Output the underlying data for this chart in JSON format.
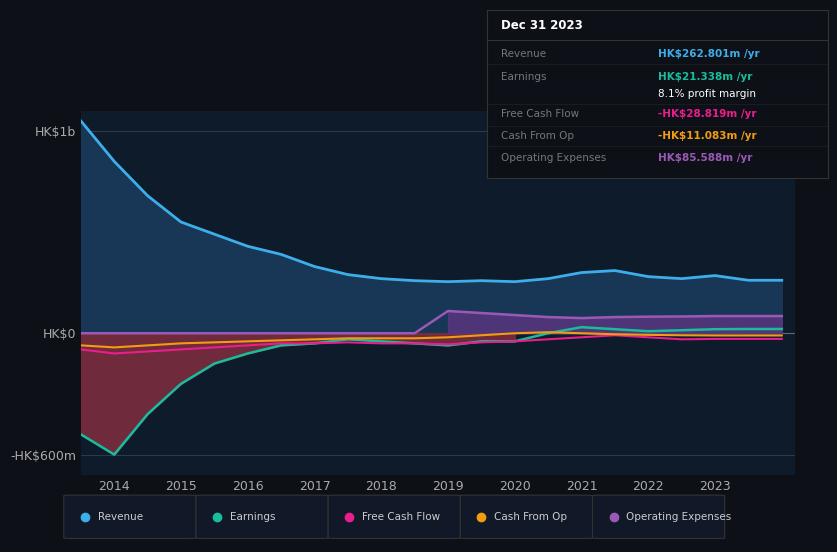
{
  "background_color": "#0d1117",
  "chart_bg": "#0d1b2a",
  "years": [
    2013.5,
    2014,
    2014.5,
    2015,
    2015.5,
    2016,
    2016.5,
    2017,
    2017.5,
    2018,
    2018.5,
    2019,
    2019.5,
    2020,
    2020.5,
    2021,
    2021.5,
    2022,
    2022.5,
    2023,
    2023.5,
    2024.0
  ],
  "revenue": [
    1050,
    850,
    680,
    550,
    490,
    430,
    390,
    330,
    290,
    270,
    260,
    255,
    260,
    255,
    270,
    300,
    310,
    280,
    270,
    285,
    262,
    262
  ],
  "earnings": [
    -500,
    -600,
    -400,
    -250,
    -150,
    -100,
    -60,
    -50,
    -30,
    -40,
    -50,
    -60,
    -40,
    -40,
    0,
    30,
    20,
    10,
    15,
    20,
    21,
    21
  ],
  "free_cash_flow": [
    -80,
    -100,
    -90,
    -80,
    -70,
    -60,
    -50,
    -50,
    -45,
    -50,
    -50,
    -55,
    -45,
    -40,
    -30,
    -20,
    -10,
    -20,
    -30,
    -28,
    -28,
    -28
  ],
  "cash_from_op": [
    -60,
    -70,
    -60,
    -50,
    -45,
    -40,
    -35,
    -30,
    -25,
    -25,
    -25,
    -20,
    -10,
    0,
    5,
    0,
    -5,
    -8,
    -10,
    -11,
    -11,
    -11
  ],
  "operating_expenses": [
    0,
    0,
    0,
    0,
    0,
    0,
    0,
    0,
    0,
    0,
    0,
    110,
    100,
    90,
    80,
    75,
    80,
    82,
    83,
    85,
    85,
    85
  ],
  "ylim": [
    -700,
    1100
  ],
  "yticks_labels": [
    "HK$1b",
    "HK$0",
    "-HK$600m"
  ],
  "yticks_values": [
    1000,
    0,
    -600
  ],
  "revenue_color": "#3daee9",
  "earnings_color": "#1abc9c",
  "fcf_color": "#e91e8c",
  "cashop_color": "#f39c12",
  "opex_color": "#9b59b6",
  "earnings_fill_color": "#7b2d3e",
  "opex_fill_color": "#5c3580",
  "revenue_fill_color": "#1a3a5c",
  "info_box": {
    "date": "Dec 31 2023",
    "revenue_label": "Revenue",
    "revenue_value": "HK$262.801m /yr",
    "revenue_color": "#3daee9",
    "earnings_label": "Earnings",
    "earnings_value": "HK$21.338m /yr",
    "earnings_color": "#1abc9c",
    "margin_text": "8.1% profit margin",
    "fcf_label": "Free Cash Flow",
    "fcf_value": "-HK$28.819m /yr",
    "fcf_color": "#e91e8c",
    "cashop_label": "Cash From Op",
    "cashop_value": "-HK$11.083m /yr",
    "cashop_color": "#f39c12",
    "opex_label": "Operating Expenses",
    "opex_value": "HK$85.588m /yr",
    "opex_color": "#9b59b6"
  },
  "legend_items": [
    {
      "label": "Revenue",
      "color": "#3daee9"
    },
    {
      "label": "Earnings",
      "color": "#1abc9c"
    },
    {
      "label": "Free Cash Flow",
      "color": "#e91e8c"
    },
    {
      "label": "Cash From Op",
      "color": "#f39c12"
    },
    {
      "label": "Operating Expenses",
      "color": "#9b59b6"
    }
  ]
}
